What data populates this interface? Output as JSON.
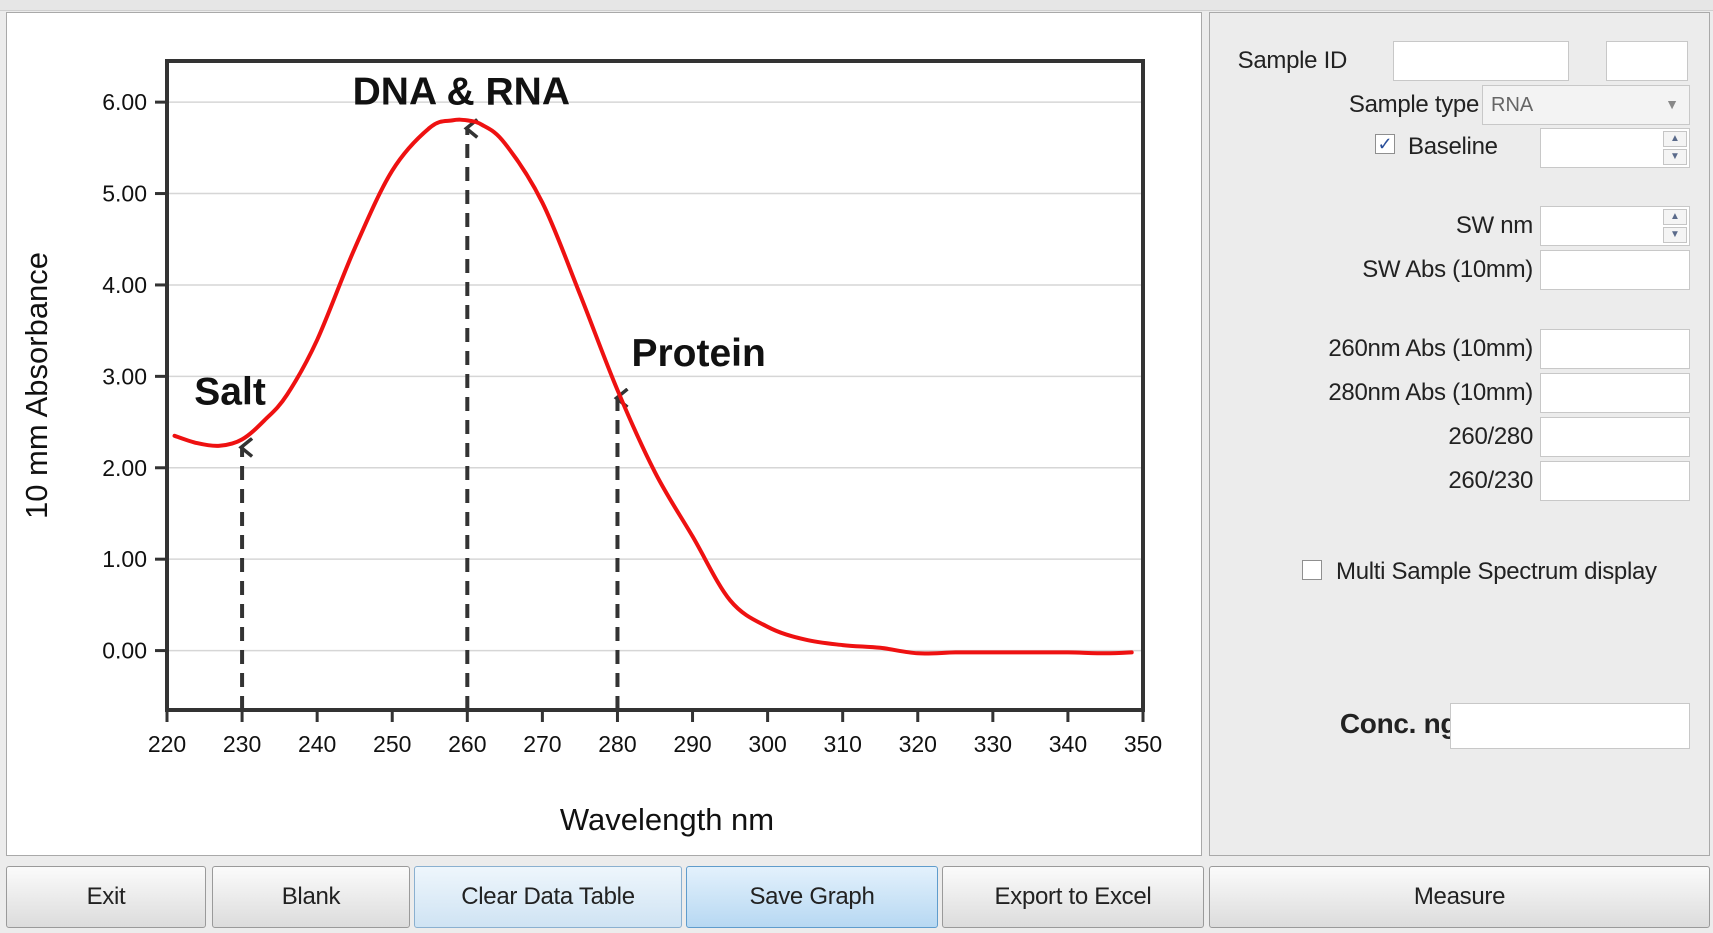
{
  "chart_data": {
    "type": "line",
    "xlabel": "Wavelength nm",
    "ylabel": "10 mm Absorbance",
    "xlim": [
      220,
      350
    ],
    "ylim": [
      -0.65,
      6.45
    ],
    "x_ticks": [
      220,
      230,
      240,
      250,
      260,
      270,
      280,
      290,
      300,
      310,
      320,
      330,
      340,
      350
    ],
    "y_ticks": [
      "0.00",
      "1.00",
      "2.00",
      "3.00",
      "4.00",
      "5.00",
      "6.00"
    ],
    "grid": "horizontal",
    "line_color": "#ee1111",
    "series": [
      {
        "x": [
          221,
          224,
          227,
          230,
          233,
          236,
          240,
          245,
          250,
          255,
          258,
          260,
          262,
          265,
          270,
          275,
          280,
          285,
          290,
          295,
          300,
          305,
          310,
          315,
          320,
          325,
          330,
          335,
          340,
          345,
          348.5
        ],
        "y": [
          2.35,
          2.27,
          2.24,
          2.31,
          2.52,
          2.8,
          3.4,
          4.4,
          5.25,
          5.72,
          5.8,
          5.8,
          5.75,
          5.55,
          4.9,
          3.9,
          2.85,
          1.95,
          1.25,
          0.55,
          0.26,
          0.12,
          0.06,
          0.03,
          -0.03,
          -0.02,
          -0.02,
          -0.02,
          -0.02,
          -0.03,
          -0.02
        ]
      }
    ],
    "annotations": [
      {
        "text": "Salt",
        "x": 230
      },
      {
        "text": "DNA & RNA",
        "x": 260
      },
      {
        "text": "Protein",
        "x": 280
      }
    ]
  },
  "side": {
    "sample_id_label": "Sample ID",
    "sample_type_label": "Sample type",
    "sample_type_value": "RNA",
    "baseline_label": "Baseline",
    "baseline_checked": "✓",
    "sw_nm_label": "SW nm",
    "sw_abs_label": "SW Abs (10mm)",
    "abs260_label": "260nm Abs (10mm)",
    "abs280_label": "280nm Abs (10mm)",
    "ratio_260_280_label": "260/280",
    "ratio_260_230_label": "260/230",
    "multi_sample_label": "Multi Sample Spectrum display",
    "conc_label": "Conc. ng/ul"
  },
  "buttons": {
    "exit": "Exit",
    "blank": "Blank",
    "clear": "Clear Data Table",
    "save": "Save Graph",
    "export": "Export to Excel",
    "measure": "Measure"
  }
}
